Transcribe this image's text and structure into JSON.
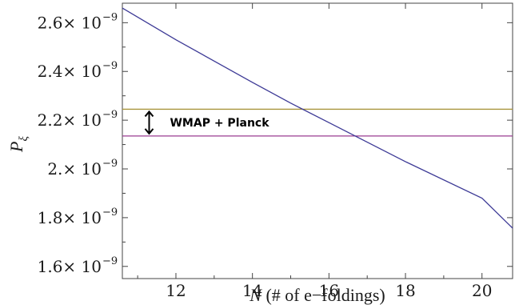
{
  "chart_data": {
    "type": "line",
    "title": "",
    "xlabel": {
      "var": "N",
      "rest": " (# of e−foldings)"
    },
    "ylabel": {
      "var": "P",
      "sub": "ξ"
    },
    "xlim": [
      10.6,
      20.8
    ],
    "ylim": [
      1.55e-09,
      2.68e-09
    ],
    "x_ticks": [
      {
        "value": 12,
        "label": "12"
      },
      {
        "value": 14,
        "label": "14"
      },
      {
        "value": 16,
        "label": "16"
      },
      {
        "value": 18,
        "label": "18"
      },
      {
        "value": 20,
        "label": "20"
      }
    ],
    "y_ticks": [
      {
        "value": 1.6e-09,
        "mant": "1.6",
        "exp": "−9"
      },
      {
        "value": 1.8e-09,
        "mant": "1.8",
        "exp": "−9"
      },
      {
        "value": 2e-09,
        "mant": "2.",
        "exp": "−9"
      },
      {
        "value": 2.2e-09,
        "mant": "2.2",
        "exp": "−9"
      },
      {
        "value": 2.4e-09,
        "mant": "2.4",
        "exp": "−9"
      },
      {
        "value": 2.6e-09,
        "mant": "2.6",
        "exp": "−9"
      }
    ],
    "times_symbol": "× 10",
    "series": [
      {
        "color": "#3d3a96",
        "x": [
          10.6,
          12,
          14,
          15,
          16,
          18,
          20,
          20.8
        ],
        "y": [
          2.66e-09,
          2.53e-09,
          2.355e-09,
          2.27e-09,
          2.19e-09,
          2.03e-09,
          1.88e-09,
          1.757e-09
        ]
      }
    ],
    "hlines": [
      {
        "name": "upper-bound",
        "y": 2.245e-09,
        "color": "#a8943a"
      },
      {
        "name": "lower-bound",
        "y": 2.135e-09,
        "color": "#9a3c92"
      }
    ],
    "annotation": {
      "text": "WMAP + Planck",
      "x": 11.3,
      "y_from": 2.135e-09,
      "y_to": 2.245e-09
    }
  }
}
